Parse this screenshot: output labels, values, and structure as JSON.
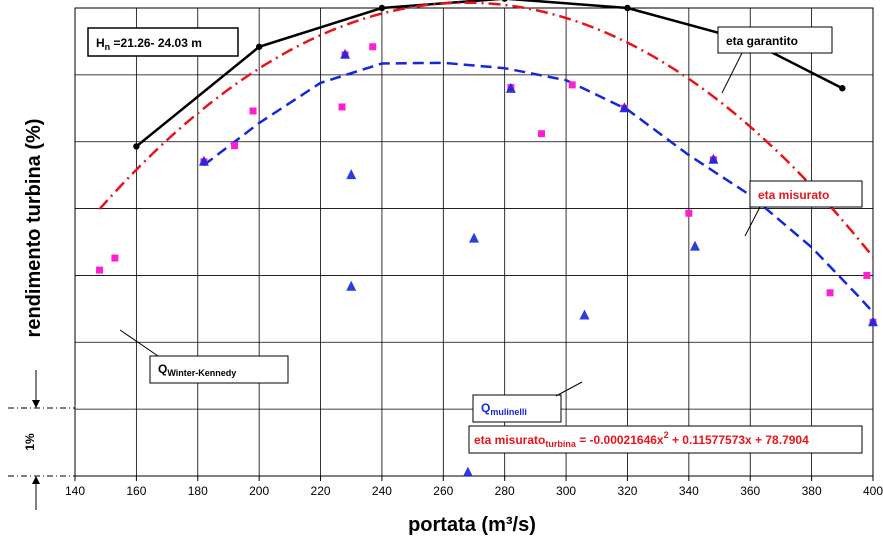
{
  "chart_data": {
    "type": "scatter",
    "xlabel": "portata (m³/s)",
    "ylabel": "rendimento turbina (%)",
    "x_ticks": [
      140,
      160,
      180,
      200,
      220,
      240,
      260,
      280,
      300,
      320,
      340,
      360,
      380,
      400
    ],
    "xlim": [
      140,
      400
    ],
    "ylim": [
      -7,
      0
    ],
    "grid": true,
    "y_unit_label": "1%",
    "head_label": {
      "main": "H",
      "sub": "n",
      "rest": " =21.26- 24.03 m"
    },
    "labels": {
      "eta_garantito": "eta garantito",
      "eta_misurato": "eta misurato",
      "q_wk_main": "Q",
      "q_wk_sub": "Winter-Kennedy",
      "q_mul_main": "Q",
      "q_mul_sub": "mulinelli"
    },
    "equation": {
      "prefix": "eta misurato",
      "sub": "turbina",
      "body": " = -0.00021646x",
      "sup": "2",
      "rest": " + 0.11577573x + 78.7904"
    },
    "colors": {
      "garantito": "#000000",
      "misurato": "#e8141c",
      "mulinelli_line": "#1428d8",
      "wk_points": "#ff1fd0",
      "mul_points": "#1428d8",
      "equation": "#e8141c",
      "mul_label": "#1428d8"
    },
    "series": [
      {
        "name": "eta garantito",
        "style": "solid",
        "points": [
          [
            160,
            -2.07
          ],
          [
            200,
            -0.58
          ],
          [
            240,
            0
          ],
          [
            280,
            0.14
          ],
          [
            320,
            0
          ],
          [
            360,
            -0.5
          ],
          [
            390,
            -1.2
          ]
        ]
      },
      {
        "name": "eta misurato",
        "style": "dashdot",
        "equation_coeffs": {
          "a": -0.00021646,
          "b": 0.11577573
        },
        "x_range": [
          148,
          400
        ]
      },
      {
        "name": "Q mulinelli fit",
        "style": "dashed",
        "points": [
          [
            182,
            -2.35
          ],
          [
            200,
            -1.72
          ],
          [
            220,
            -1.12
          ],
          [
            240,
            -0.83
          ],
          [
            260,
            -0.82
          ],
          [
            280,
            -0.9
          ],
          [
            300,
            -1.08
          ],
          [
            320,
            -1.52
          ],
          [
            340,
            -2.2
          ],
          [
            360,
            -2.8
          ],
          [
            380,
            -3.58
          ],
          [
            395,
            -4.3
          ],
          [
            400,
            -4.55
          ]
        ]
      }
    ],
    "wk_points": [
      [
        148,
        -3.92
      ],
      [
        153,
        -3.74
      ],
      [
        182,
        -2.3
      ],
      [
        192,
        -2.06
      ],
      [
        198,
        -1.54
      ],
      [
        227,
        -1.48
      ],
      [
        228,
        -0.7
      ],
      [
        237,
        -0.58
      ],
      [
        282,
        -1.19
      ],
      [
        292,
        -1.88
      ],
      [
        302,
        -1.15
      ],
      [
        319,
        -1.5
      ],
      [
        340,
        -3.07
      ],
      [
        348,
        -2.27
      ],
      [
        386,
        -4.26
      ],
      [
        398,
        -4
      ],
      [
        400,
        -4.7
      ]
    ],
    "mul_points": [
      [
        182,
        -2.3
      ],
      [
        228,
        -0.7
      ],
      [
        230,
        -2.5
      ],
      [
        230,
        -4.17
      ],
      [
        268,
        -6.95
      ],
      [
        270,
        -3.45
      ],
      [
        282,
        -1.21
      ],
      [
        306,
        -4.6
      ],
      [
        319,
        -1.5
      ],
      [
        342,
        -3.57
      ],
      [
        348,
        -2.27
      ],
      [
        400,
        -4.7
      ]
    ]
  }
}
